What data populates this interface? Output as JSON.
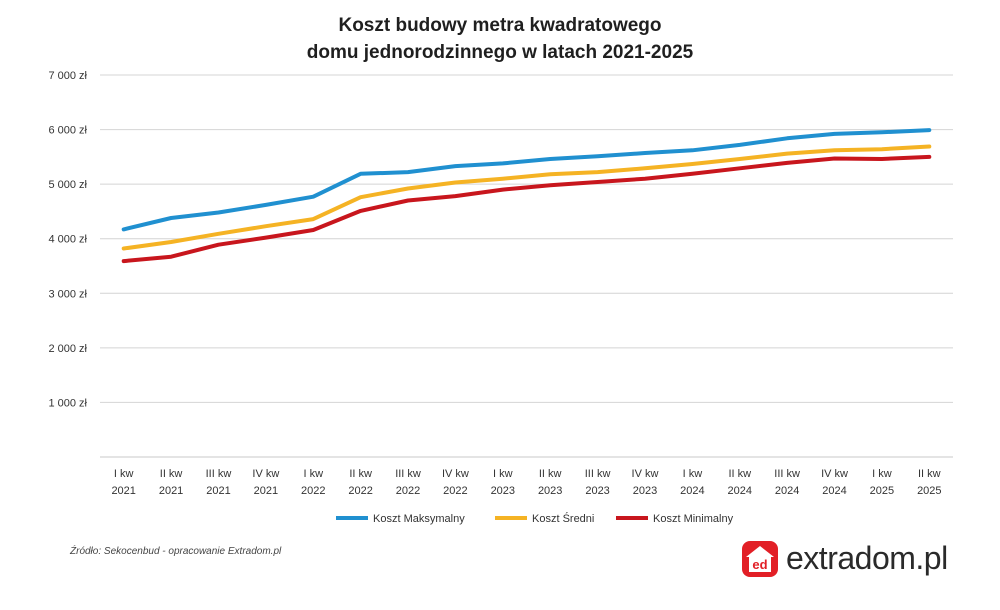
{
  "title_line1": "Koszt budowy metra kwadratowego",
  "title_line2": "domu jednorodzinnego w latach 2021-2025",
  "source": "Źródło: Sekocenbud - opracowanie Extradom.pl",
  "logo": {
    "text": "extradom.pl",
    "badge": "ed"
  },
  "chart_data": {
    "type": "line",
    "title": "Koszt budowy metra kwadratowego domu jednorodzinnego w latach 2021-2025",
    "categories": [
      [
        "I kw",
        "2021"
      ],
      [
        "II kw",
        "2021"
      ],
      [
        "III kw",
        "2021"
      ],
      [
        "IV kw",
        "2021"
      ],
      [
        "I kw",
        "2022"
      ],
      [
        "II kw",
        "2022"
      ],
      [
        "III kw",
        "2022"
      ],
      [
        "IV kw",
        "2022"
      ],
      [
        "I kw",
        "2023"
      ],
      [
        "II kw",
        "2023"
      ],
      [
        "III kw",
        "2023"
      ],
      [
        "IV kw",
        "2023"
      ],
      [
        "I kw",
        "2024"
      ],
      [
        "II kw",
        "2024"
      ],
      [
        "III kw",
        "2024"
      ],
      [
        "IV kw",
        "2024"
      ],
      [
        "I kw",
        "2025"
      ],
      [
        "II kw",
        "2025"
      ]
    ],
    "ylim": [
      0,
      7000
    ],
    "yticks": [
      {
        "value": 1000,
        "label": "1 000 zł"
      },
      {
        "value": 2000,
        "label": "2 000 zł"
      },
      {
        "value": 3000,
        "label": "3 000 zł"
      },
      {
        "value": 4000,
        "label": "4 000 zł"
      },
      {
        "value": 5000,
        "label": "5 000 zł"
      },
      {
        "value": 6000,
        "label": "6 000 zł"
      },
      {
        "value": 7000,
        "label": "7 000 zł"
      }
    ],
    "grid": true,
    "legend_position": "bottom",
    "series": [
      {
        "name": "Koszt Maksymalny",
        "color": "#2090d0",
        "values": [
          4170,
          4380,
          4480,
          4620,
          4770,
          5190,
          5220,
          5330,
          5380,
          5460,
          5510,
          5570,
          5620,
          5720,
          5840,
          5920,
          5950,
          5990
        ]
      },
      {
        "name": "Koszt Średni",
        "color": "#f5b324",
        "values": [
          3820,
          3940,
          4090,
          4230,
          4360,
          4760,
          4920,
          5030,
          5100,
          5180,
          5220,
          5290,
          5370,
          5460,
          5560,
          5620,
          5640,
          5690
        ]
      },
      {
        "name": "Koszt Minimalny",
        "color": "#c8161d",
        "values": [
          3590,
          3670,
          3890,
          4020,
          4160,
          4510,
          4700,
          4780,
          4900,
          4980,
          5040,
          5100,
          5190,
          5290,
          5390,
          5470,
          5460,
          5500
        ]
      }
    ]
  }
}
